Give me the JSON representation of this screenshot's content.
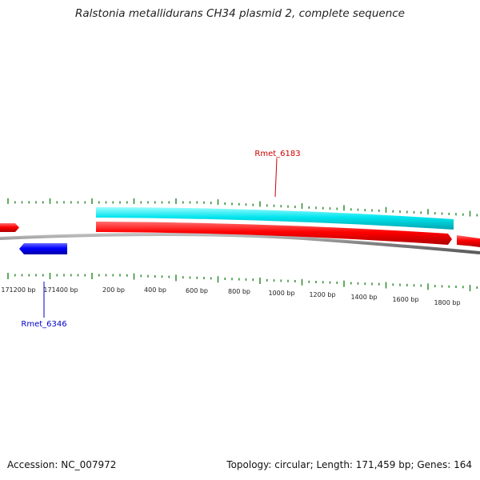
{
  "title": "Ralstonia metallidurans CH34 plasmid 2, complete sequence",
  "footer": {
    "accession": "Accession: NC_007972",
    "summary": "Topology: circular; Length: 171,459 bp; Genes: 164"
  },
  "gene_labels": [
    {
      "name": "Rmet_6183",
      "color": "#cc0000"
    },
    {
      "name": "Rmet_6346",
      "color": "#0000cc"
    }
  ],
  "tick_labels": [
    "171200 bp",
    "171400 bp",
    "200 bp",
    "400 bp",
    "600 bp",
    "800 bp",
    "1000 bp",
    "1200 bp",
    "1400 bp",
    "1600 bp",
    "1800 bp"
  ],
  "colors": {
    "forward_feature": "#ff0000",
    "reverse_feature": "#0000ff",
    "cds_band": "#00e5ee",
    "backbone": "#808080",
    "ticks": "#2e8b2e"
  }
}
